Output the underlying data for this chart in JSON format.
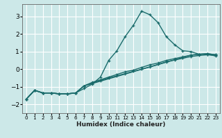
{
  "xlabel": "Humidex (Indice chaleur)",
  "xlim": [
    -0.5,
    23.5
  ],
  "ylim": [
    -2.5,
    3.7
  ],
  "background_color": "#cce8e8",
  "grid_color": "#ffffff",
  "line_color": "#1a6b6b",
  "line_width": 1.0,
  "marker": "+",
  "marker_size": 3.5,
  "marker_edge_width": 0.9,
  "curves": [
    {
      "x": [
        0,
        1,
        2,
        3,
        4,
        5,
        6,
        7,
        8,
        9,
        10,
        11,
        12,
        13,
        14,
        15,
        16,
        17,
        18,
        19,
        20,
        21,
        22,
        23
      ],
      "y": [
        -1.7,
        -1.2,
        -1.35,
        -1.35,
        -1.4,
        -1.4,
        -1.35,
        -1.1,
        -0.85,
        -0.45,
        0.5,
        1.05,
        1.85,
        2.5,
        3.3,
        3.1,
        2.65,
        1.85,
        1.4,
        1.05,
        1.0,
        0.85,
        0.85,
        0.75
      ]
    },
    {
      "x": [
        0,
        1,
        2,
        3,
        4,
        5,
        6,
        7,
        20,
        21,
        22,
        23
      ],
      "y": [
        -1.7,
        -1.2,
        -1.35,
        -1.35,
        -1.4,
        -1.4,
        -1.35,
        -0.95,
        0.8,
        0.85,
        0.88,
        0.82
      ]
    },
    {
      "x": [
        0,
        1,
        2,
        3,
        4,
        5,
        6,
        7,
        8,
        9,
        10,
        11,
        12,
        13,
        14,
        15,
        16,
        17,
        18,
        19,
        20,
        21,
        22,
        23
      ],
      "y": [
        -1.7,
        -1.2,
        -1.35,
        -1.35,
        -1.4,
        -1.4,
        -1.35,
        -0.95,
        -0.75,
        -0.6,
        -0.45,
        -0.3,
        -0.15,
        -0.05,
        0.1,
        0.25,
        0.35,
        0.5,
        0.6,
        0.7,
        0.8,
        0.85,
        0.88,
        0.82
      ]
    },
    {
      "x": [
        0,
        1,
        2,
        3,
        4,
        5,
        6,
        7,
        8,
        9,
        10,
        11,
        12,
        13,
        14,
        15,
        16,
        17,
        18,
        19,
        20,
        21,
        22,
        23
      ],
      "y": [
        -1.7,
        -1.2,
        -1.35,
        -1.35,
        -1.4,
        -1.4,
        -1.35,
        -0.95,
        -0.8,
        -0.65,
        -0.5,
        -0.38,
        -0.25,
        -0.12,
        0.0,
        0.13,
        0.27,
        0.42,
        0.52,
        0.62,
        0.72,
        0.78,
        0.82,
        0.78
      ]
    }
  ],
  "yticks": [
    -2,
    -1,
    0,
    1,
    2,
    3
  ],
  "xticks": [
    0,
    1,
    2,
    3,
    4,
    5,
    6,
    7,
    8,
    9,
    10,
    11,
    12,
    13,
    14,
    15,
    16,
    17,
    18,
    19,
    20,
    21,
    22,
    23
  ],
  "xlabel_fontsize": 6.5,
  "xlabel_fontweight": "bold",
  "ytick_fontsize": 6.5,
  "xtick_fontsize": 5.2
}
